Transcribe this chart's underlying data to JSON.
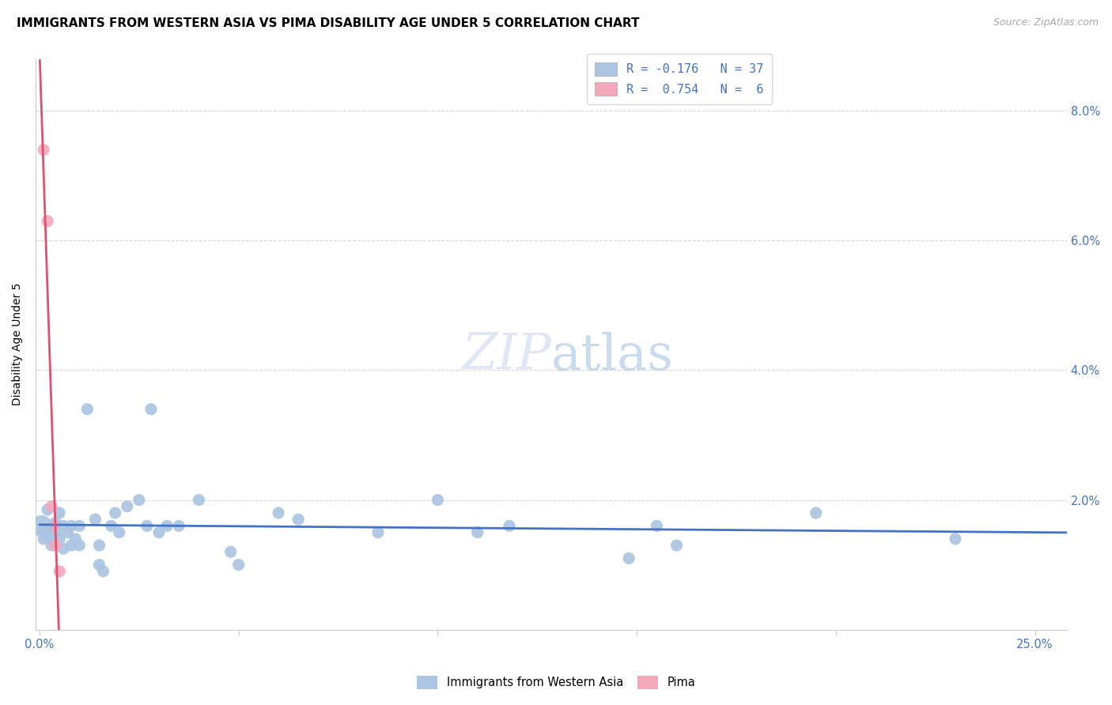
{
  "title": "IMMIGRANTS FROM WESTERN ASIA VS PIMA DISABILITY AGE UNDER 5 CORRELATION CHART",
  "source": "Source: ZipAtlas.com",
  "ylabel": "Disability Age Under 5",
  "ylim": [
    0.0,
    0.088
  ],
  "xlim": [
    -0.001,
    0.258
  ],
  "xticks": [
    0.0,
    0.05,
    0.1,
    0.15,
    0.2,
    0.25
  ],
  "yticks": [
    0.0,
    0.02,
    0.04,
    0.06,
    0.08
  ],
  "blue_scatter": [
    [
      0.0005,
      0.016
    ],
    [
      0.001,
      0.0155
    ],
    [
      0.001,
      0.014
    ],
    [
      0.002,
      0.0185
    ],
    [
      0.002,
      0.0145
    ],
    [
      0.003,
      0.014
    ],
    [
      0.003,
      0.013
    ],
    [
      0.004,
      0.0165
    ],
    [
      0.004,
      0.015
    ],
    [
      0.005,
      0.018
    ],
    [
      0.005,
      0.014
    ],
    [
      0.006,
      0.016
    ],
    [
      0.006,
      0.0125
    ],
    [
      0.007,
      0.015
    ],
    [
      0.008,
      0.016
    ],
    [
      0.008,
      0.013
    ],
    [
      0.009,
      0.014
    ],
    [
      0.01,
      0.016
    ],
    [
      0.01,
      0.013
    ],
    [
      0.012,
      0.034
    ],
    [
      0.014,
      0.017
    ],
    [
      0.015,
      0.013
    ],
    [
      0.015,
      0.01
    ],
    [
      0.016,
      0.009
    ],
    [
      0.018,
      0.016
    ],
    [
      0.019,
      0.018
    ],
    [
      0.02,
      0.015
    ],
    [
      0.022,
      0.019
    ],
    [
      0.025,
      0.02
    ],
    [
      0.027,
      0.016
    ],
    [
      0.028,
      0.034
    ],
    [
      0.03,
      0.015
    ],
    [
      0.032,
      0.016
    ],
    [
      0.035,
      0.016
    ],
    [
      0.04,
      0.02
    ],
    [
      0.048,
      0.012
    ],
    [
      0.05,
      0.01
    ],
    [
      0.06,
      0.018
    ],
    [
      0.065,
      0.017
    ],
    [
      0.085,
      0.015
    ],
    [
      0.1,
      0.02
    ],
    [
      0.11,
      0.015
    ],
    [
      0.118,
      0.016
    ],
    [
      0.148,
      0.011
    ],
    [
      0.155,
      0.016
    ],
    [
      0.16,
      0.013
    ],
    [
      0.195,
      0.018
    ],
    [
      0.23,
      0.014
    ]
  ],
  "pink_scatter": [
    [
      0.001,
      0.074
    ],
    [
      0.002,
      0.063
    ],
    [
      0.003,
      0.019
    ],
    [
      0.0035,
      0.016
    ],
    [
      0.004,
      0.013
    ],
    [
      0.005,
      0.009
    ]
  ],
  "blue_color": "#aac4e2",
  "pink_color": "#f4a8bc",
  "blue_line_color": "#4472c4",
  "pink_line_color": "#e05070",
  "background_color": "#ffffff",
  "grid_color": "#d8d8d8",
  "title_fontsize": 11,
  "axis_label_fontsize": 10,
  "tick_fontsize": 10.5,
  "legend_fontsize": 11,
  "watermark_color": "#ccd8f0",
  "scatter_size": 120,
  "large_scatter_size": 380
}
